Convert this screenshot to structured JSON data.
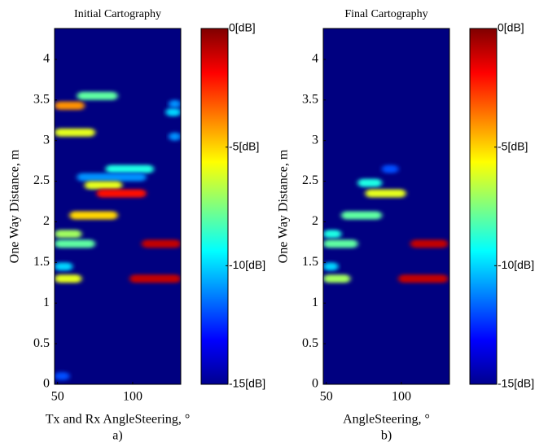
{
  "chart_data": [
    {
      "type": "heatmap",
      "title": "Initial Cartography",
      "xlabel": "Tx and Rx AngleSteering, °",
      "ylabel": "One Way Distance, m",
      "caption": "a)",
      "xlim": [
        48,
        132
      ],
      "ylim": [
        0,
        4.38
      ],
      "xticks": [
        50,
        100
      ],
      "yticks": [
        0,
        0.5,
        1,
        1.5,
        2,
        2.5,
        3,
        3.5,
        4
      ],
      "clim": [
        -15,
        0
      ],
      "cticks": [
        {
          "value": 0,
          "label": "0[dB]"
        },
        {
          "value": -5,
          "label": "-5[dB]"
        },
        {
          "value": -10,
          "label": "-10[dB]"
        },
        {
          "value": -15,
          "label": "-15[dB]"
        }
      ],
      "spots": [
        {
          "x0": 63,
          "x1": 90,
          "y": 3.55,
          "db": -8
        },
        {
          "x0": 48,
          "x1": 68,
          "y": 3.43,
          "db": -4
        },
        {
          "x0": 122,
          "x1": 132,
          "y": 3.35,
          "db": -10
        },
        {
          "x0": 124,
          "x1": 132,
          "y": 3.45,
          "db": -11
        },
        {
          "x0": 48,
          "x1": 75,
          "y": 3.1,
          "db": -6
        },
        {
          "x0": 124,
          "x1": 132,
          "y": 3.05,
          "db": -11
        },
        {
          "x0": 82,
          "x1": 114,
          "y": 2.65,
          "db": -9
        },
        {
          "x0": 63,
          "x1": 109,
          "y": 2.55,
          "db": -11
        },
        {
          "x0": 68,
          "x1": 93,
          "y": 2.45,
          "db": -6
        },
        {
          "x0": 76,
          "x1": 109,
          "y": 2.35,
          "db": -2
        },
        {
          "x0": 58,
          "x1": 90,
          "y": 2.08,
          "db": -5
        },
        {
          "x0": 48,
          "x1": 66,
          "y": 1.85,
          "db": -7
        },
        {
          "x0": 48,
          "x1": 75,
          "y": 1.73,
          "db": -8
        },
        {
          "x0": 106,
          "x1": 132,
          "y": 1.73,
          "db": -1
        },
        {
          "x0": 48,
          "x1": 60,
          "y": 1.45,
          "db": -10
        },
        {
          "x0": 48,
          "x1": 66,
          "y": 1.3,
          "db": -6
        },
        {
          "x0": 98,
          "x1": 132,
          "y": 1.3,
          "db": -1
        },
        {
          "x0": 48,
          "x1": 58,
          "y": 0.1,
          "db": -12
        }
      ]
    },
    {
      "type": "heatmap",
      "title": "Final Cartography",
      "xlabel": "AngleSteering, °",
      "ylabel": "One Way Distance, m",
      "caption": "b)",
      "xlim": [
        48,
        132
      ],
      "ylim": [
        0,
        4.38
      ],
      "xticks": [
        50,
        100
      ],
      "yticks": [
        0,
        0.5,
        1,
        1.5,
        2,
        2.5,
        3,
        3.5,
        4
      ],
      "clim": [
        -15,
        0
      ],
      "cticks": [
        {
          "value": 0,
          "label": "0[dB]"
        },
        {
          "value": -5,
          "label": "-5[dB]"
        },
        {
          "value": -10,
          "label": "-10[dB]"
        },
        {
          "value": -15,
          "label": "-15[dB]"
        }
      ],
      "spots": [
        {
          "x0": 87,
          "x1": 98,
          "y": 2.65,
          "db": -12
        },
        {
          "x0": 71,
          "x1": 87,
          "y": 2.48,
          "db": -9
        },
        {
          "x0": 76,
          "x1": 103,
          "y": 2.35,
          "db": -6
        },
        {
          "x0": 60,
          "x1": 87,
          "y": 2.08,
          "db": -8
        },
        {
          "x0": 48,
          "x1": 60,
          "y": 1.85,
          "db": -9
        },
        {
          "x0": 48,
          "x1": 71,
          "y": 1.73,
          "db": -8
        },
        {
          "x0": 106,
          "x1": 131,
          "y": 1.73,
          "db": -1
        },
        {
          "x0": 48,
          "x1": 58,
          "y": 1.45,
          "db": -10
        },
        {
          "x0": 48,
          "x1": 66,
          "y": 1.3,
          "db": -7
        },
        {
          "x0": 98,
          "x1": 131,
          "y": 1.3,
          "db": -1
        }
      ]
    }
  ]
}
